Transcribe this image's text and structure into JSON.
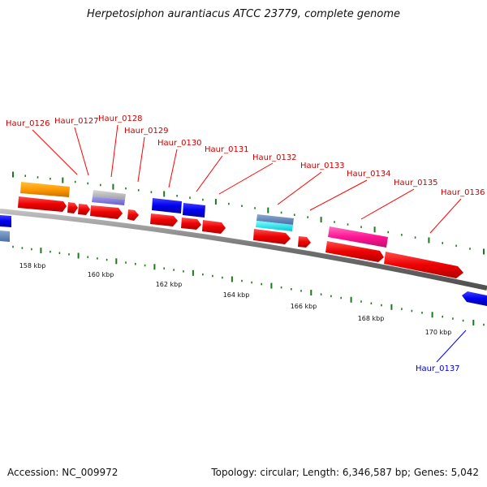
{
  "title": "Herpetosiphon aurantiacus ATCC 23779, complete genome",
  "footer": {
    "accession": "Accession: NC_009972",
    "summary": "Topology: circular; Length: 6,346,587 bp; Genes: 5,042"
  },
  "colors": {
    "backbone": "#808080",
    "label_forward": "#cc0000",
    "label_reverse": "#0000cc",
    "tick": "#1a7a1a"
  },
  "scale": {
    "unit": "kbp",
    "labels": [
      "158 kbp",
      "160 kbp",
      "162 kbp",
      "164 kbp",
      "166 kbp",
      "168 kbp",
      "170 kbp"
    ]
  },
  "genes": [
    {
      "id": "Haur_0126",
      "strand": "forward"
    },
    {
      "id": "Haur_0127",
      "strand": "forward"
    },
    {
      "id": "Haur_0128",
      "strand": "forward"
    },
    {
      "id": "Haur_0129",
      "strand": "forward"
    },
    {
      "id": "Haur_0130",
      "strand": "forward"
    },
    {
      "id": "Haur_0131",
      "strand": "forward"
    },
    {
      "id": "Haur_0132",
      "strand": "forward"
    },
    {
      "id": "Haur_0133",
      "strand": "forward"
    },
    {
      "id": "Haur_0134",
      "strand": "forward"
    },
    {
      "id": "Haur_0135",
      "strand": "forward"
    },
    {
      "id": "Haur_0136",
      "strand": "forward"
    },
    {
      "id": "Haur_0137",
      "strand": "reverse"
    }
  ]
}
